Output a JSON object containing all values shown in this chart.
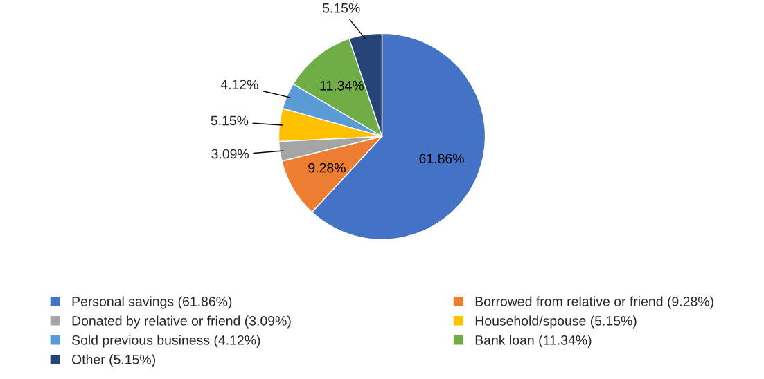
{
  "chart_data": {
    "type": "pie",
    "categories": [
      "Personal savings (61.86%)",
      "Borrowed from relative or friend (9.28%)",
      "Donated by relative or friend (3.09%)",
      "Household/spouse (5.15%)",
      "Sold previous business (4.12%)",
      "Bank loan (11.34%)",
      "Other (5.15%)"
    ],
    "values": [
      61.86,
      9.28,
      3.09,
      5.15,
      4.12,
      11.34,
      5.15
    ],
    "colors": [
      "#4472c4",
      "#ed7d31",
      "#a5a5a5",
      "#ffc000",
      "#5b9bd5",
      "#70ad47",
      "#264478"
    ],
    "value_labels": [
      "61.86%",
      "9.28%",
      "3.09%",
      "5.15%",
      "4.12%",
      "11.34%",
      "5.15%"
    ],
    "legend": "bottom"
  }
}
